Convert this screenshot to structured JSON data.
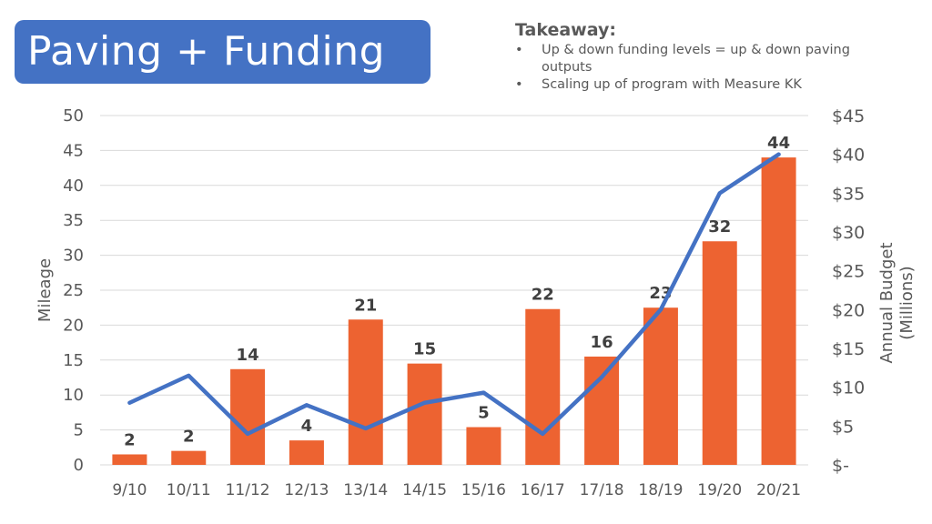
{
  "header": {
    "title": "Paving + Funding"
  },
  "takeaway": {
    "heading": "Takeaway:",
    "bullets": [
      "Up & down funding levels = up & down paving outputs",
      "Scaling up of program with Measure KK"
    ]
  },
  "chart_data": {
    "type": "bar+line",
    "categories": [
      "9/10",
      "10/11",
      "11/12",
      "12/13",
      "13/14",
      "14/15",
      "15/16",
      "16/17",
      "17/18",
      "18/19",
      "19/20",
      "20/21"
    ],
    "series": [
      {
        "name": "Mileage",
        "type": "bar",
        "axis": "left",
        "color": "#ed6331",
        "values": [
          1.5,
          2,
          13.7,
          3.5,
          20.8,
          14.5,
          5.4,
          22.3,
          15.5,
          22.5,
          32,
          44
        ],
        "data_labels": [
          "2",
          "2",
          "14",
          "4",
          "21",
          "15",
          "5",
          "22",
          "16",
          "23",
          "32",
          "44"
        ]
      },
      {
        "name": "Annual Budget (Millions)",
        "type": "line",
        "axis": "right",
        "color": "#4472c4",
        "values": [
          8,
          11.5,
          4,
          7.7,
          4.7,
          8,
          9.3,
          4,
          11.3,
          20,
          35,
          40
        ]
      }
    ],
    "ylabel": "Mileage",
    "y2label": [
      "Annual Budget",
      "(Millions)"
    ],
    "ylim": [
      0,
      50
    ],
    "y2lim": [
      0,
      45
    ],
    "yticks": [
      "0",
      "5",
      "10",
      "15",
      "20",
      "25",
      "30",
      "35",
      "40",
      "45",
      "50"
    ],
    "y2ticks": [
      "$-",
      "$5",
      "$10",
      "$15",
      "$20",
      "$25",
      "$30",
      "$35",
      "$40",
      "$45"
    ],
    "grid": true
  }
}
